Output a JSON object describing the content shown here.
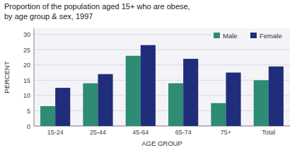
{
  "chart_data": {
    "type": "bar",
    "title": "Proportion of the population aged 15+ who are obese,",
    "subtitle": "by age group & sex, 1997",
    "categories": [
      "15-24",
      "25-44",
      "45-64",
      "65-74",
      "75+",
      "Total"
    ],
    "series": [
      {
        "name": "Male",
        "color": "#2e8b74",
        "values": [
          6.5,
          14,
          23,
          14,
          7.5,
          15
        ]
      },
      {
        "name": "Female",
        "color": "#1f2d7b",
        "values": [
          12.5,
          17,
          26.5,
          22,
          17.5,
          19.5
        ]
      }
    ],
    "x_label": "AGE GROUP",
    "y_label": "PERCENT",
    "ylim": [
      0,
      32
    ],
    "yticks": [
      0,
      5,
      10,
      15,
      20,
      25,
      30
    ],
    "grid": true,
    "legend": "upper right"
  }
}
